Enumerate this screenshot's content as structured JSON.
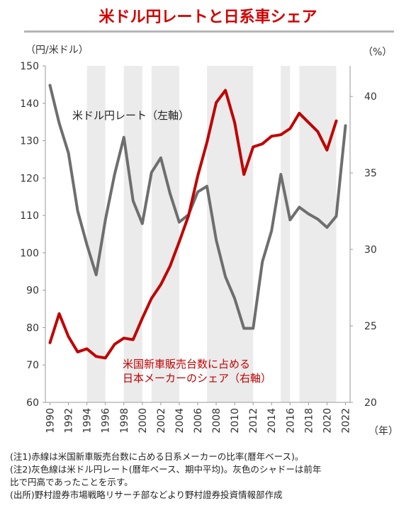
{
  "title": "米ドル円レートと日系車シェア",
  "chart_data": {
    "type": "line",
    "y_left_label": "（円/米ドル）",
    "y_right_label": "（%）",
    "x_label": "（年）",
    "y_left_ticks": [
      150,
      140,
      130,
      120,
      110,
      100,
      90,
      80,
      70,
      60
    ],
    "y_right_ticks": [
      40,
      35,
      30,
      25,
      20
    ],
    "x_ticks": [
      "1990",
      "1992",
      "1994",
      "1996",
      "1998",
      "2000",
      "2002",
      "2004",
      "2006",
      "2008",
      "2010",
      "2012",
      "2014",
      "2016",
      "2018",
      "2020",
      "2022"
    ],
    "ylim_left": [
      60,
      150
    ],
    "ylim_right": [
      20,
      42
    ],
    "shaded_periods": [
      [
        1994,
        1996
      ],
      [
        1998,
        2000
      ],
      [
        2001,
        2004
      ],
      [
        2007,
        2012
      ],
      [
        2015,
        2016
      ],
      [
        2017,
        2021
      ]
    ],
    "series": [
      {
        "name": "米ドル円レート（左軸）",
        "axis": "left",
        "color": "#6e6e6e",
        "x": [
          1990,
          1991,
          1992,
          1993,
          1994,
          1995,
          1996,
          1997,
          1998,
          1999,
          2000,
          2001,
          2002,
          2003,
          2004,
          2005,
          2006,
          2007,
          2008,
          2009,
          2010,
          2011,
          2012,
          2013,
          2014,
          2015,
          2016,
          2017,
          2018,
          2019,
          2020,
          2021,
          2022
        ],
        "values": [
          144.8,
          134.7,
          126.7,
          111.2,
          102.2,
          94.1,
          108.8,
          121.0,
          130.9,
          113.9,
          107.8,
          121.5,
          125.4,
          115.9,
          108.2,
          110.2,
          116.3,
          117.8,
          103.4,
          93.6,
          87.8,
          79.8,
          79.8,
          97.6,
          105.9,
          121.0,
          108.8,
          112.2,
          110.4,
          109.0,
          106.8,
          109.8,
          134.0
        ]
      },
      {
        "name": "米国新車販売台数に占める日本メーカーのシェア（右軸）",
        "axis": "right",
        "color": "#c00000",
        "x": [
          1990,
          1991,
          1992,
          1993,
          1994,
          1995,
          1996,
          1997,
          1998,
          1999,
          2000,
          2001,
          2002,
          2003,
          2004,
          2005,
          2006,
          2007,
          2008,
          2009,
          2010,
          2011,
          2012,
          2013,
          2014,
          2015,
          2016,
          2017,
          2018,
          2019,
          2020,
          2021
        ],
        "values": [
          23.9,
          25.8,
          24.3,
          23.3,
          23.5,
          23.0,
          22.9,
          23.8,
          24.2,
          24.1,
          25.5,
          26.8,
          27.7,
          28.9,
          30.5,
          32.2,
          34.8,
          37.0,
          39.6,
          40.4,
          38.3,
          34.9,
          36.7,
          36.9,
          37.4,
          37.5,
          37.9,
          38.9,
          38.3,
          37.7,
          36.5,
          38.4
        ]
      }
    ],
    "annotations": {
      "usd_jpy_label": "米ドル円レート（左軸）",
      "share_label_1": "米国新車販売台数に占める",
      "share_label_2": "日本メーカーのシェア（右軸）"
    }
  },
  "notes": [
    "(注1)赤線は米国新車販売台数に占める日系メーカーの比率(暦年ベース)。",
    "(注2)灰色線は米ドル円レート(暦年ベース、期中平均)。灰色のシャドーは前年",
    "比で円高であったことを示す。",
    "(出所)野村證券市場戦略リサーチ部などより野村證券投資情報部作成"
  ]
}
